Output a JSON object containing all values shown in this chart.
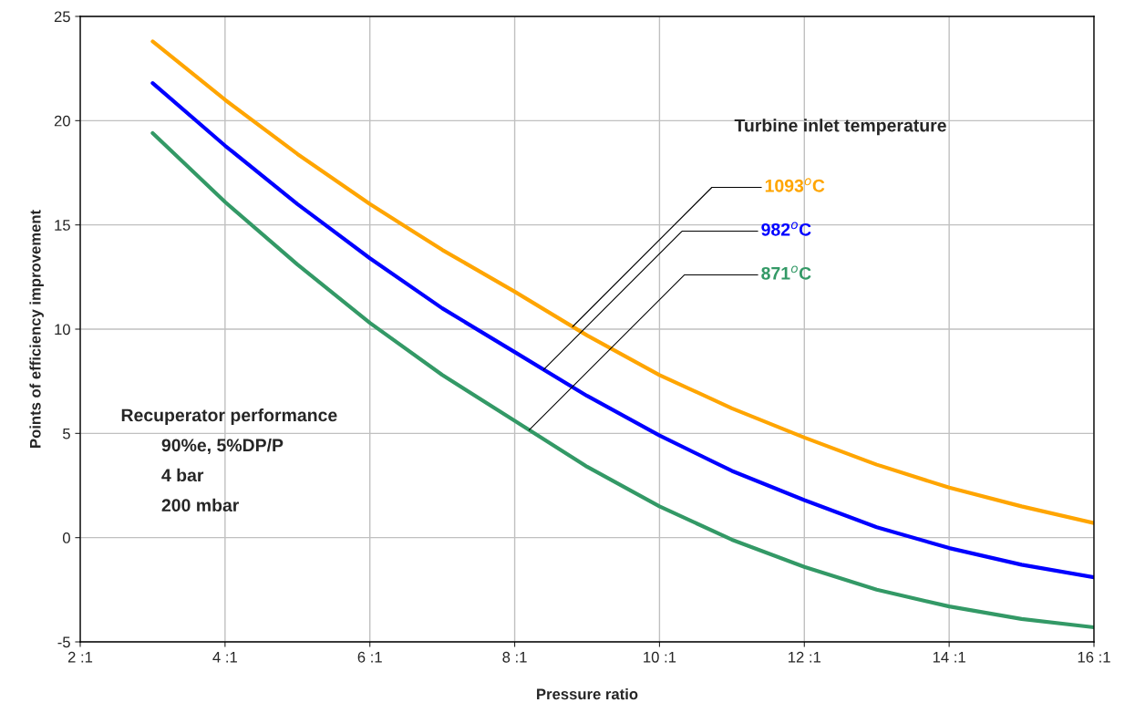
{
  "chart_data": {
    "type": "line",
    "xlabel": "Pressure ratio",
    "ylabel": "Points of efficiency improvement",
    "categories": [
      "2 :1",
      null,
      "4 :1",
      null,
      "6 :1",
      null,
      "8 :1",
      null,
      "10 :1",
      null,
      "12 :1",
      null,
      "14 :1",
      null,
      "16 :1"
    ],
    "legend_title": "Turbine inlet temperature",
    "series": [
      {
        "name": "1093$^{o}$C",
        "color": "#ffa500",
        "values": [
          null,
          23.8,
          21.0,
          18.4,
          16.0,
          13.8,
          11.8,
          9.7,
          7.8,
          6.2,
          4.8,
          3.5,
          2.4,
          1.5,
          0.7
        ]
      },
      {
        "name": "982$^{o}$C",
        "color": "#0000ff",
        "values": [
          null,
          21.8,
          18.8,
          16.0,
          13.4,
          11.0,
          8.9,
          6.8,
          4.9,
          3.2,
          1.8,
          0.5,
          -0.5,
          -1.3,
          -1.9
        ]
      },
      {
        "name": "871$^{o}$C",
        "color": "#339966",
        "values": [
          null,
          19.4,
          16.1,
          13.1,
          10.3,
          7.8,
          5.6,
          3.4,
          1.5,
          -0.1,
          -1.4,
          -2.5,
          -3.3,
          -3.9,
          -4.3
        ]
      }
    ],
    "ylim": [
      -5,
      25
    ],
    "yticks": [
      -5,
      0,
      5,
      10,
      15,
      20,
      25
    ],
    "grid": true,
    "legend": false,
    "marker": "none",
    "line_style": "solid",
    "annotations": [
      "Recuperator performance",
      "90%e, 5%DP/P",
      "4 bar",
      "200 mbar"
    ]
  }
}
